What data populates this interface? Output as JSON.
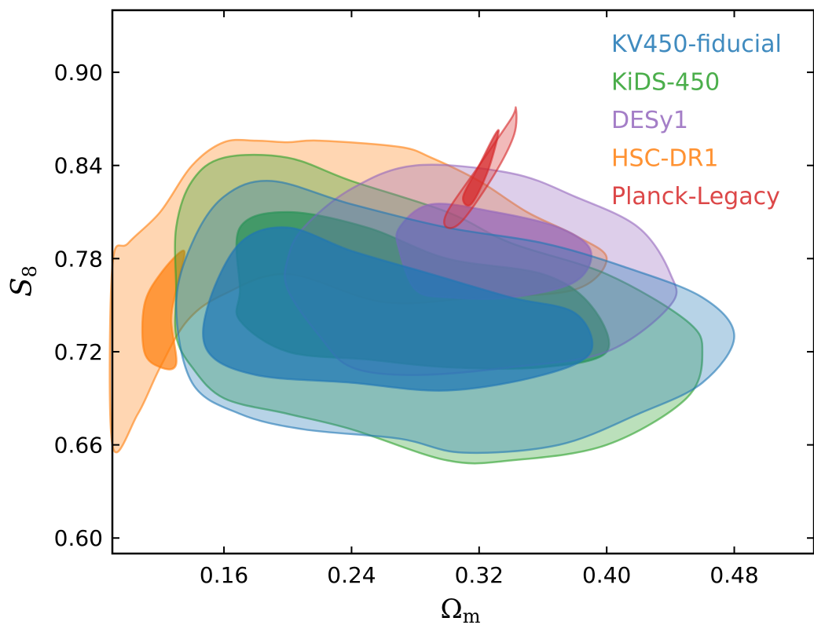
{
  "chart_data": {
    "type": "contour",
    "xlabel": "Ω",
    "xlabel_sub": "m",
    "ylabel": "S",
    "ylabel_sub": "8",
    "xlim": [
      0.09,
      0.53
    ],
    "ylim": [
      0.59,
      0.94
    ],
    "xticks": [
      0.16,
      0.24,
      0.32,
      0.4,
      0.48
    ],
    "xtick_labels": [
      "0.16",
      "0.24",
      "0.32",
      "0.40",
      "0.48"
    ],
    "yticks": [
      0.6,
      0.66,
      0.72,
      0.78,
      0.84,
      0.9
    ],
    "ytick_labels": [
      "0.60",
      "0.66",
      "0.72",
      "0.78",
      "0.84",
      "0.90"
    ],
    "legend_position": "top-right",
    "series": [
      {
        "name": "HSC-DR1",
        "color": "#ff7f0e",
        "contours": [
          {
            "level": "95%",
            "points": [
              [
                0.09,
                0.66
              ],
              [
                0.106,
                0.68
              ],
              [
                0.12,
                0.71
              ],
              [
                0.137,
                0.74
              ],
              [
                0.16,
                0.757
              ],
              [
                0.2,
                0.77
              ],
              [
                0.26,
                0.752
              ],
              [
                0.32,
                0.755
              ],
              [
                0.38,
                0.76
              ],
              [
                0.4,
                0.78
              ],
              [
                0.38,
                0.795
              ],
              [
                0.35,
                0.81
              ],
              [
                0.32,
                0.83
              ],
              [
                0.29,
                0.845
              ],
              [
                0.27,
                0.852
              ],
              [
                0.22,
                0.856
              ],
              [
                0.2,
                0.855
              ],
              [
                0.18,
                0.856
              ],
              [
                0.16,
                0.855
              ],
              [
                0.14,
                0.84
              ],
              [
                0.12,
                0.81
              ],
              [
                0.1,
                0.79
              ],
              [
                0.09,
                0.775
              ]
            ]
          },
          {
            "level": "68%",
            "points": [
              [
                0.11,
                0.72
              ],
              [
                0.12,
                0.71
              ],
              [
                0.13,
                0.712
              ],
              [
                0.127,
                0.74
              ],
              [
                0.13,
                0.76
              ],
              [
                0.135,
                0.785
              ],
              [
                0.12,
                0.77
              ],
              [
                0.11,
                0.75
              ]
            ]
          }
        ]
      },
      {
        "name": "KiDS-450",
        "color": "#2ca02c",
        "contours": [
          {
            "level": "95%",
            "points": [
              [
                0.13,
                0.76
              ],
              [
                0.13,
                0.73
              ],
              [
                0.14,
                0.71
              ],
              [
                0.16,
                0.69
              ],
              [
                0.2,
                0.68
              ],
              [
                0.24,
                0.67
              ],
              [
                0.3,
                0.65
              ],
              [
                0.34,
                0.65
              ],
              [
                0.4,
                0.66
              ],
              [
                0.45,
                0.69
              ],
              [
                0.46,
                0.72
              ],
              [
                0.45,
                0.74
              ],
              [
                0.4,
                0.77
              ],
              [
                0.34,
                0.79
              ],
              [
                0.3,
                0.81
              ],
              [
                0.24,
                0.83
              ],
              [
                0.2,
                0.845
              ],
              [
                0.16,
                0.845
              ],
              [
                0.14,
                0.83
              ],
              [
                0.13,
                0.8
              ]
            ]
          },
          {
            "level": "68%",
            "points": [
              [
                0.17,
                0.76
              ],
              [
                0.17,
                0.74
              ],
              [
                0.2,
                0.72
              ],
              [
                0.25,
                0.715
              ],
              [
                0.3,
                0.71
              ],
              [
                0.36,
                0.71
              ],
              [
                0.4,
                0.72
              ],
              [
                0.39,
                0.75
              ],
              [
                0.36,
                0.77
              ],
              [
                0.3,
                0.78
              ],
              [
                0.25,
                0.8
              ],
              [
                0.2,
                0.81
              ],
              [
                0.17,
                0.8
              ]
            ]
          }
        ]
      },
      {
        "name": "DESy1",
        "color": "#9467bd",
        "contours": [
          {
            "level": "95%",
            "points": [
              [
                0.2,
                0.76
              ],
              [
                0.22,
                0.73
              ],
              [
                0.24,
                0.71
              ],
              [
                0.28,
                0.705
              ],
              [
                0.34,
                0.71
              ],
              [
                0.4,
                0.72
              ],
              [
                0.44,
                0.75
              ],
              [
                0.44,
                0.77
              ],
              [
                0.42,
                0.8
              ],
              [
                0.38,
                0.82
              ],
              [
                0.34,
                0.835
              ],
              [
                0.28,
                0.84
              ],
              [
                0.24,
                0.825
              ],
              [
                0.21,
                0.8
              ],
              [
                0.2,
                0.78
              ]
            ]
          },
          {
            "level": "68%",
            "points": [
              [
                0.27,
                0.785
              ],
              [
                0.28,
                0.76
              ],
              [
                0.3,
                0.755
              ],
              [
                0.34,
                0.755
              ],
              [
                0.38,
                0.765
              ],
              [
                0.39,
                0.785
              ],
              [
                0.37,
                0.8
              ],
              [
                0.33,
                0.81
              ],
              [
                0.29,
                0.815
              ],
              [
                0.27,
                0.8
              ]
            ]
          }
        ]
      },
      {
        "name": "KV450-fiducial",
        "color": "#1f77b4",
        "contours": [
          {
            "level": "95%",
            "points": [
              [
                0.13,
                0.75
              ],
              [
                0.14,
                0.7
              ],
              [
                0.17,
                0.68
              ],
              [
                0.21,
                0.67
              ],
              [
                0.27,
                0.664
              ],
              [
                0.31,
                0.655
              ],
              [
                0.37,
                0.66
              ],
              [
                0.42,
                0.68
              ],
              [
                0.46,
                0.7
              ],
              [
                0.48,
                0.73
              ],
              [
                0.46,
                0.755
              ],
              [
                0.41,
                0.775
              ],
              [
                0.36,
                0.79
              ],
              [
                0.3,
                0.8
              ],
              [
                0.24,
                0.815
              ],
              [
                0.19,
                0.83
              ],
              [
                0.16,
                0.82
              ],
              [
                0.14,
                0.79
              ]
            ]
          },
          {
            "level": "68%",
            "points": [
              [
                0.15,
                0.75
              ],
              [
                0.15,
                0.72
              ],
              [
                0.18,
                0.705
              ],
              [
                0.24,
                0.7
              ],
              [
                0.3,
                0.695
              ],
              [
                0.36,
                0.705
              ],
              [
                0.39,
                0.72
              ],
              [
                0.38,
                0.745
              ],
              [
                0.34,
                0.755
              ],
              [
                0.29,
                0.77
              ],
              [
                0.24,
                0.785
              ],
              [
                0.2,
                0.8
              ],
              [
                0.17,
                0.79
              ]
            ]
          }
        ]
      },
      {
        "name": "Planck-Legacy",
        "color": "#d62728",
        "contours": [
          {
            "level": "95%",
            "points": [
              [
                0.3,
                0.81
              ],
              [
                0.32,
                0.84
              ],
              [
                0.34,
                0.87
              ],
              [
                0.343,
                0.877
              ],
              [
                0.342,
                0.86
              ],
              [
                0.33,
                0.835
              ],
              [
                0.31,
                0.805
              ],
              [
                0.3,
                0.8
              ]
            ]
          },
          {
            "level": "68%",
            "points": [
              [
                0.31,
                0.82
              ],
              [
                0.32,
                0.84
              ],
              [
                0.33,
                0.86
              ],
              [
                0.332,
                0.86
              ],
              [
                0.325,
                0.835
              ],
              [
                0.315,
                0.815
              ]
            ]
          }
        ]
      }
    ]
  }
}
